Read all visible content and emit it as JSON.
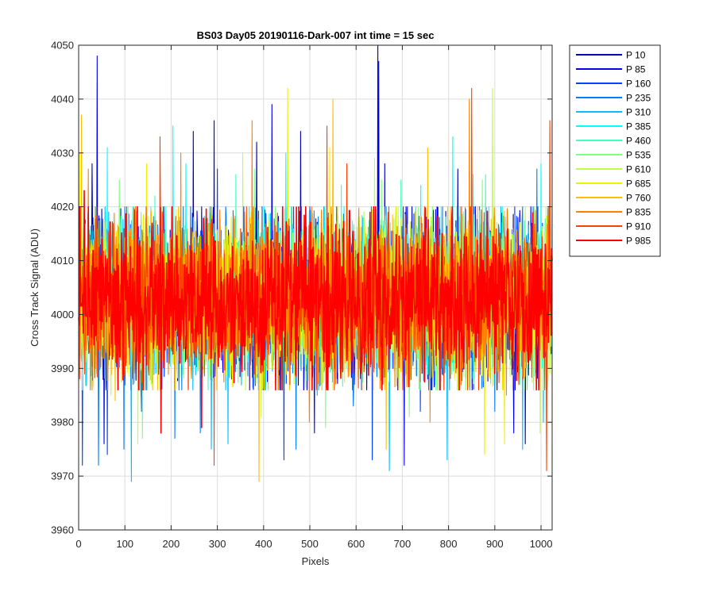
{
  "chart_data": {
    "type": "line",
    "title": "BS03 Day05 20190116-Dark-007 int time = 15 sec",
    "xlabel": "Pixels",
    "ylabel": "Cross Track Signal (ADU)",
    "xlim": [
      0,
      1024
    ],
    "ylim": [
      3960,
      4050
    ],
    "xticks": [
      0,
      100,
      200,
      300,
      400,
      500,
      600,
      700,
      800,
      900,
      1000
    ],
    "yticks": [
      3960,
      3970,
      3980,
      3990,
      4000,
      4010,
      4020,
      4030,
      4040,
      4050
    ],
    "grid": true,
    "legend_position": "outside-top-right",
    "n_points_per_series": 1024,
    "mean": 4003,
    "spread_sd": 7,
    "series": [
      {
        "name": "P 10",
        "color": "#0000b8",
        "spikes": [
          [
            29,
            4028
          ],
          [
            248,
            4034
          ],
          [
            385,
            4032
          ],
          [
            480,
            4034
          ],
          [
            647,
            4050
          ],
          [
            662,
            4028
          ],
          [
            820,
            4027
          ],
          [
            966,
            3976
          ]
        ]
      },
      {
        "name": "P 85",
        "color": "#0000f0",
        "spikes": [
          [
            40,
            4048
          ],
          [
            55,
            3976
          ],
          [
            293,
            4036
          ],
          [
            418,
            4039
          ],
          [
            510,
            3978
          ],
          [
            649,
            4047
          ],
          [
            704,
            3972
          ],
          [
            941,
            3978
          ]
        ]
      },
      {
        "name": "P 160",
        "color": "#0040ff",
        "spikes": [
          [
            8,
            3972
          ],
          [
            62,
            3974
          ],
          [
            136,
            3982
          ],
          [
            300,
            4027
          ],
          [
            444,
            3973
          ],
          [
            635,
            3973
          ],
          [
            739,
            3982
          ],
          [
            1016,
            4017
          ]
        ]
      },
      {
        "name": "P 235",
        "color": "#0080ff",
        "spikes": [
          [
            43,
            3972
          ],
          [
            98,
            3975
          ],
          [
            208,
            3977
          ],
          [
            263,
            3978
          ],
          [
            470,
            3975
          ],
          [
            594,
            3983
          ],
          [
            900,
            3982
          ],
          [
            991,
            4027
          ]
        ]
      },
      {
        "name": "P 310",
        "color": "#00bfff",
        "spikes": [
          [
            114,
            3969
          ],
          [
            287,
            3975
          ],
          [
            323,
            3976
          ],
          [
            516,
            3985
          ],
          [
            672,
            3971
          ],
          [
            797,
            3973
          ],
          [
            960,
            3975
          ],
          [
            1005,
            3980
          ]
        ]
      },
      {
        "name": "P 385",
        "color": "#00ffff",
        "spikes": [
          [
            62,
            4031
          ],
          [
            204,
            4035
          ],
          [
            232,
            4028
          ],
          [
            448,
            4030
          ],
          [
            740,
            4024
          ],
          [
            809,
            4033
          ],
          [
            853,
            4026
          ],
          [
            1000,
            4028
          ]
        ]
      },
      {
        "name": "P 460",
        "color": "#40ffbf",
        "spikes": [
          [
            18,
            3990
          ],
          [
            165,
            4022
          ],
          [
            340,
            4026
          ],
          [
            568,
            4024
          ],
          [
            697,
            4025
          ],
          [
            880,
            4026
          ],
          [
            1013,
            3986
          ]
        ]
      },
      {
        "name": "P 535",
        "color": "#80ff80",
        "spikes": [
          [
            88,
            4025
          ],
          [
            138,
            3977
          ],
          [
            380,
            4027
          ],
          [
            534,
            3979
          ],
          [
            655,
            4025
          ],
          [
            715,
            3981
          ],
          [
            873,
            4025
          ]
        ]
      },
      {
        "name": "P 610",
        "color": "#bfff40",
        "spikes": [
          [
            70,
            3985
          ],
          [
            128,
            3976
          ],
          [
            355,
            4030
          ],
          [
            395,
            3981
          ],
          [
            640,
            4029
          ],
          [
            895,
            4042
          ],
          [
            998,
            3978
          ]
        ]
      },
      {
        "name": "P 685",
        "color": "#f0f000",
        "spikes": [
          [
            2,
            4030
          ],
          [
            147,
            4028
          ],
          [
            452,
            4042
          ],
          [
            543,
            4031
          ],
          [
            612,
            3989
          ],
          [
            878,
            3974
          ],
          [
            921,
            3976
          ]
        ]
      },
      {
        "name": "P 760",
        "color": "#ffc000",
        "spikes": [
          [
            6,
            4037
          ],
          [
            79,
            3984
          ],
          [
            216,
            4020
          ],
          [
            390,
            3969
          ],
          [
            550,
            4040
          ],
          [
            665,
            3975
          ],
          [
            755,
            4031
          ]
        ]
      },
      {
        "name": "P 835",
        "color": "#ff8000",
        "spikes": [
          [
            21,
            4027
          ],
          [
            221,
            4030
          ],
          [
            375,
            4036
          ],
          [
            499,
            3980
          ],
          [
            760,
            3980
          ],
          [
            845,
            4040
          ],
          [
            925,
            3985
          ]
        ]
      },
      {
        "name": "P 910",
        "color": "#ff4000",
        "spikes": [
          [
            176,
            4033
          ],
          [
            293,
            3972
          ],
          [
            537,
            4035
          ],
          [
            580,
            4028
          ],
          [
            850,
            4042
          ],
          [
            1019,
            4036
          ],
          [
            1012,
            3971
          ]
        ]
      },
      {
        "name": "P 985",
        "color": "#ff0000",
        "spikes": [
          [
            12,
            4023
          ],
          [
            178,
            3978
          ],
          [
            266,
            3979
          ],
          [
            441,
            4020
          ],
          [
            630,
            4019
          ],
          [
            860,
            3992
          ],
          [
            1024,
            4010
          ]
        ]
      }
    ]
  }
}
